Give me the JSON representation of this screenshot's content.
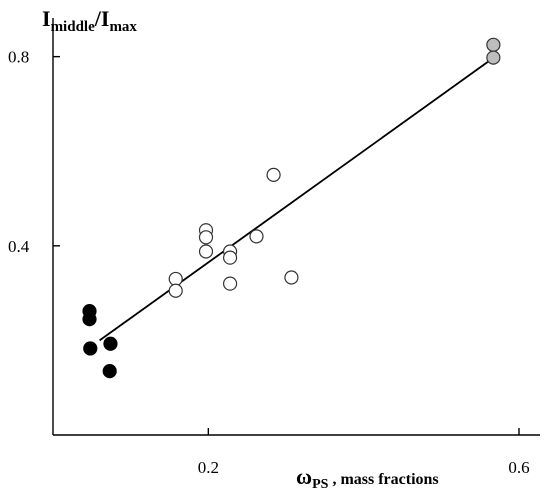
{
  "chart_data": {
    "type": "scatter",
    "title": "",
    "ylabel": {
      "main": "I",
      "sub1": "middle",
      "sep": "/I",
      "sub2": "max"
    },
    "xlabel": {
      "main": "ω",
      "sub": "PS",
      "rest": " , mass fractions"
    },
    "xlim": [
      0.0,
      0.6
    ],
    "ylim": [
      0.0,
      0.85
    ],
    "x_ticks": [
      {
        "value": 0.2,
        "label": "0.2"
      },
      {
        "value": 0.6,
        "label": "0.6"
      }
    ],
    "y_ticks": [
      {
        "value": 0.4,
        "label": "0.4"
      },
      {
        "value": 0.8,
        "label": "0.8"
      }
    ],
    "grid": false,
    "series": [
      {
        "marker": "filled-black",
        "color": "#000000",
        "points": [
          {
            "x": 0.047,
            "y": 0.262
          },
          {
            "x": 0.047,
            "y": 0.245
          },
          {
            "x": 0.048,
            "y": 0.183
          },
          {
            "x": 0.074,
            "y": 0.193
          },
          {
            "x": 0.073,
            "y": 0.135
          }
        ]
      },
      {
        "marker": "open-circle",
        "color": "#ffffff",
        "points": [
          {
            "x": 0.158,
            "y": 0.33
          },
          {
            "x": 0.158,
            "y": 0.305
          },
          {
            "x": 0.197,
            "y": 0.433
          },
          {
            "x": 0.197,
            "y": 0.418
          },
          {
            "x": 0.197,
            "y": 0.388
          },
          {
            "x": 0.228,
            "y": 0.388
          },
          {
            "x": 0.228,
            "y": 0.375
          },
          {
            "x": 0.228,
            "y": 0.32
          },
          {
            "x": 0.262,
            "y": 0.42
          },
          {
            "x": 0.284,
            "y": 0.55
          },
          {
            "x": 0.307,
            "y": 0.333
          }
        ]
      },
      {
        "marker": "filled-gray",
        "color": "#bdbdbd",
        "points": [
          {
            "x": 0.567,
            "y": 0.825
          },
          {
            "x": 0.567,
            "y": 0.798
          }
        ]
      }
    ],
    "trendline": {
      "x": [
        0.06,
        0.565
      ],
      "y": [
        0.2,
        0.795
      ]
    }
  }
}
